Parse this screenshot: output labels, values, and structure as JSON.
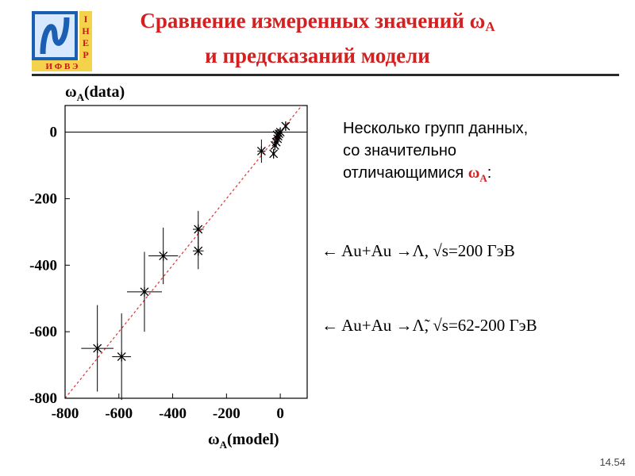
{
  "header": {
    "title_line1": "Сравнение измеренных значений ω",
    "title_line1_sub": "A",
    "title_line2": "и предсказаний модели",
    "logo_letters_right": [
      "І",
      "Н",
      "Е",
      "Р"
    ],
    "logo_letters_bottom": "И Ф В Э"
  },
  "note": {
    "line1": "Несколько групп данных,",
    "line2": "со значительно",
    "line3": "отличающимися ",
    "accent": "ω",
    "accent_sub": "A",
    "tail": ":"
  },
  "annotations": [
    "← Au+Au →Λ, √s=200 ГэВ",
    "← Au+Au →Λ̃, √s=62-200 ГэВ"
  ],
  "page_number": "14.54",
  "colors": {
    "title": "#d42020",
    "diagonal": "#e03030",
    "ink": "#000000",
    "rule": "#2a2a2a"
  },
  "chart_data": {
    "type": "scatter",
    "ylabel": "ωA(data)",
    "ylabel_main": "ω",
    "ylabel_sub": "A",
    "ylabel_rest": "(data)",
    "xlabel": "ωA(model)",
    "xlabel_main": "ω",
    "xlabel_sub": "A",
    "xlabel_rest": "(model)",
    "xlim": [
      -800,
      100
    ],
    "ylim": [
      -800,
      80
    ],
    "x_ticks": [
      -800,
      -600,
      -400,
      -200,
      0
    ],
    "x_tick_labels": [
      "-800",
      "-600",
      "-400",
      "-200",
      "0"
    ],
    "y_ticks": [
      -800,
      -600,
      -400,
      -200,
      0
    ],
    "y_tick_labels": [
      "-800",
      "-600",
      "-400",
      "-200",
      "0"
    ],
    "grid": false,
    "reference_lines": [
      "y=0 horizontal",
      "y=x diagonal dashed"
    ],
    "points": [
      {
        "x": -680,
        "y": -650,
        "xerr": 60,
        "yerr": 130
      },
      {
        "x": -590,
        "y": -675,
        "xerr": 35,
        "yerr": 130
      },
      {
        "x": -505,
        "y": -480,
        "xerr": 65,
        "yerr": 120
      },
      {
        "x": -435,
        "y": -372,
        "xerr": 55,
        "yerr": 85
      },
      {
        "x": -305,
        "y": -292,
        "xerr": 20,
        "yerr": 55
      },
      {
        "x": -305,
        "y": -357,
        "xerr": 20,
        "yerr": 55
      },
      {
        "x": -70,
        "y": -57,
        "xerr": 15,
        "yerr": 35
      },
      {
        "x": -25,
        "y": -65,
        "xerr": 5,
        "yerr": 8
      },
      {
        "x": -20,
        "y": -40,
        "xerr": 4,
        "yerr": 6
      },
      {
        "x": -15,
        "y": -30,
        "xerr": 4,
        "yerr": 6
      },
      {
        "x": -10,
        "y": -20,
        "xerr": 4,
        "yerr": 6
      },
      {
        "x": -8,
        "y": -12,
        "xerr": 4,
        "yerr": 6
      },
      {
        "x": -5,
        "y": -5,
        "xerr": 4,
        "yerr": 6
      },
      {
        "x": 0,
        "y": 0,
        "xerr": 4,
        "yerr": 6
      },
      {
        "x": 20,
        "y": 18,
        "xerr": 4,
        "yerr": 6
      },
      {
        "x": -12,
        "y": -8,
        "xerr": 4,
        "yerr": 6
      }
    ]
  }
}
